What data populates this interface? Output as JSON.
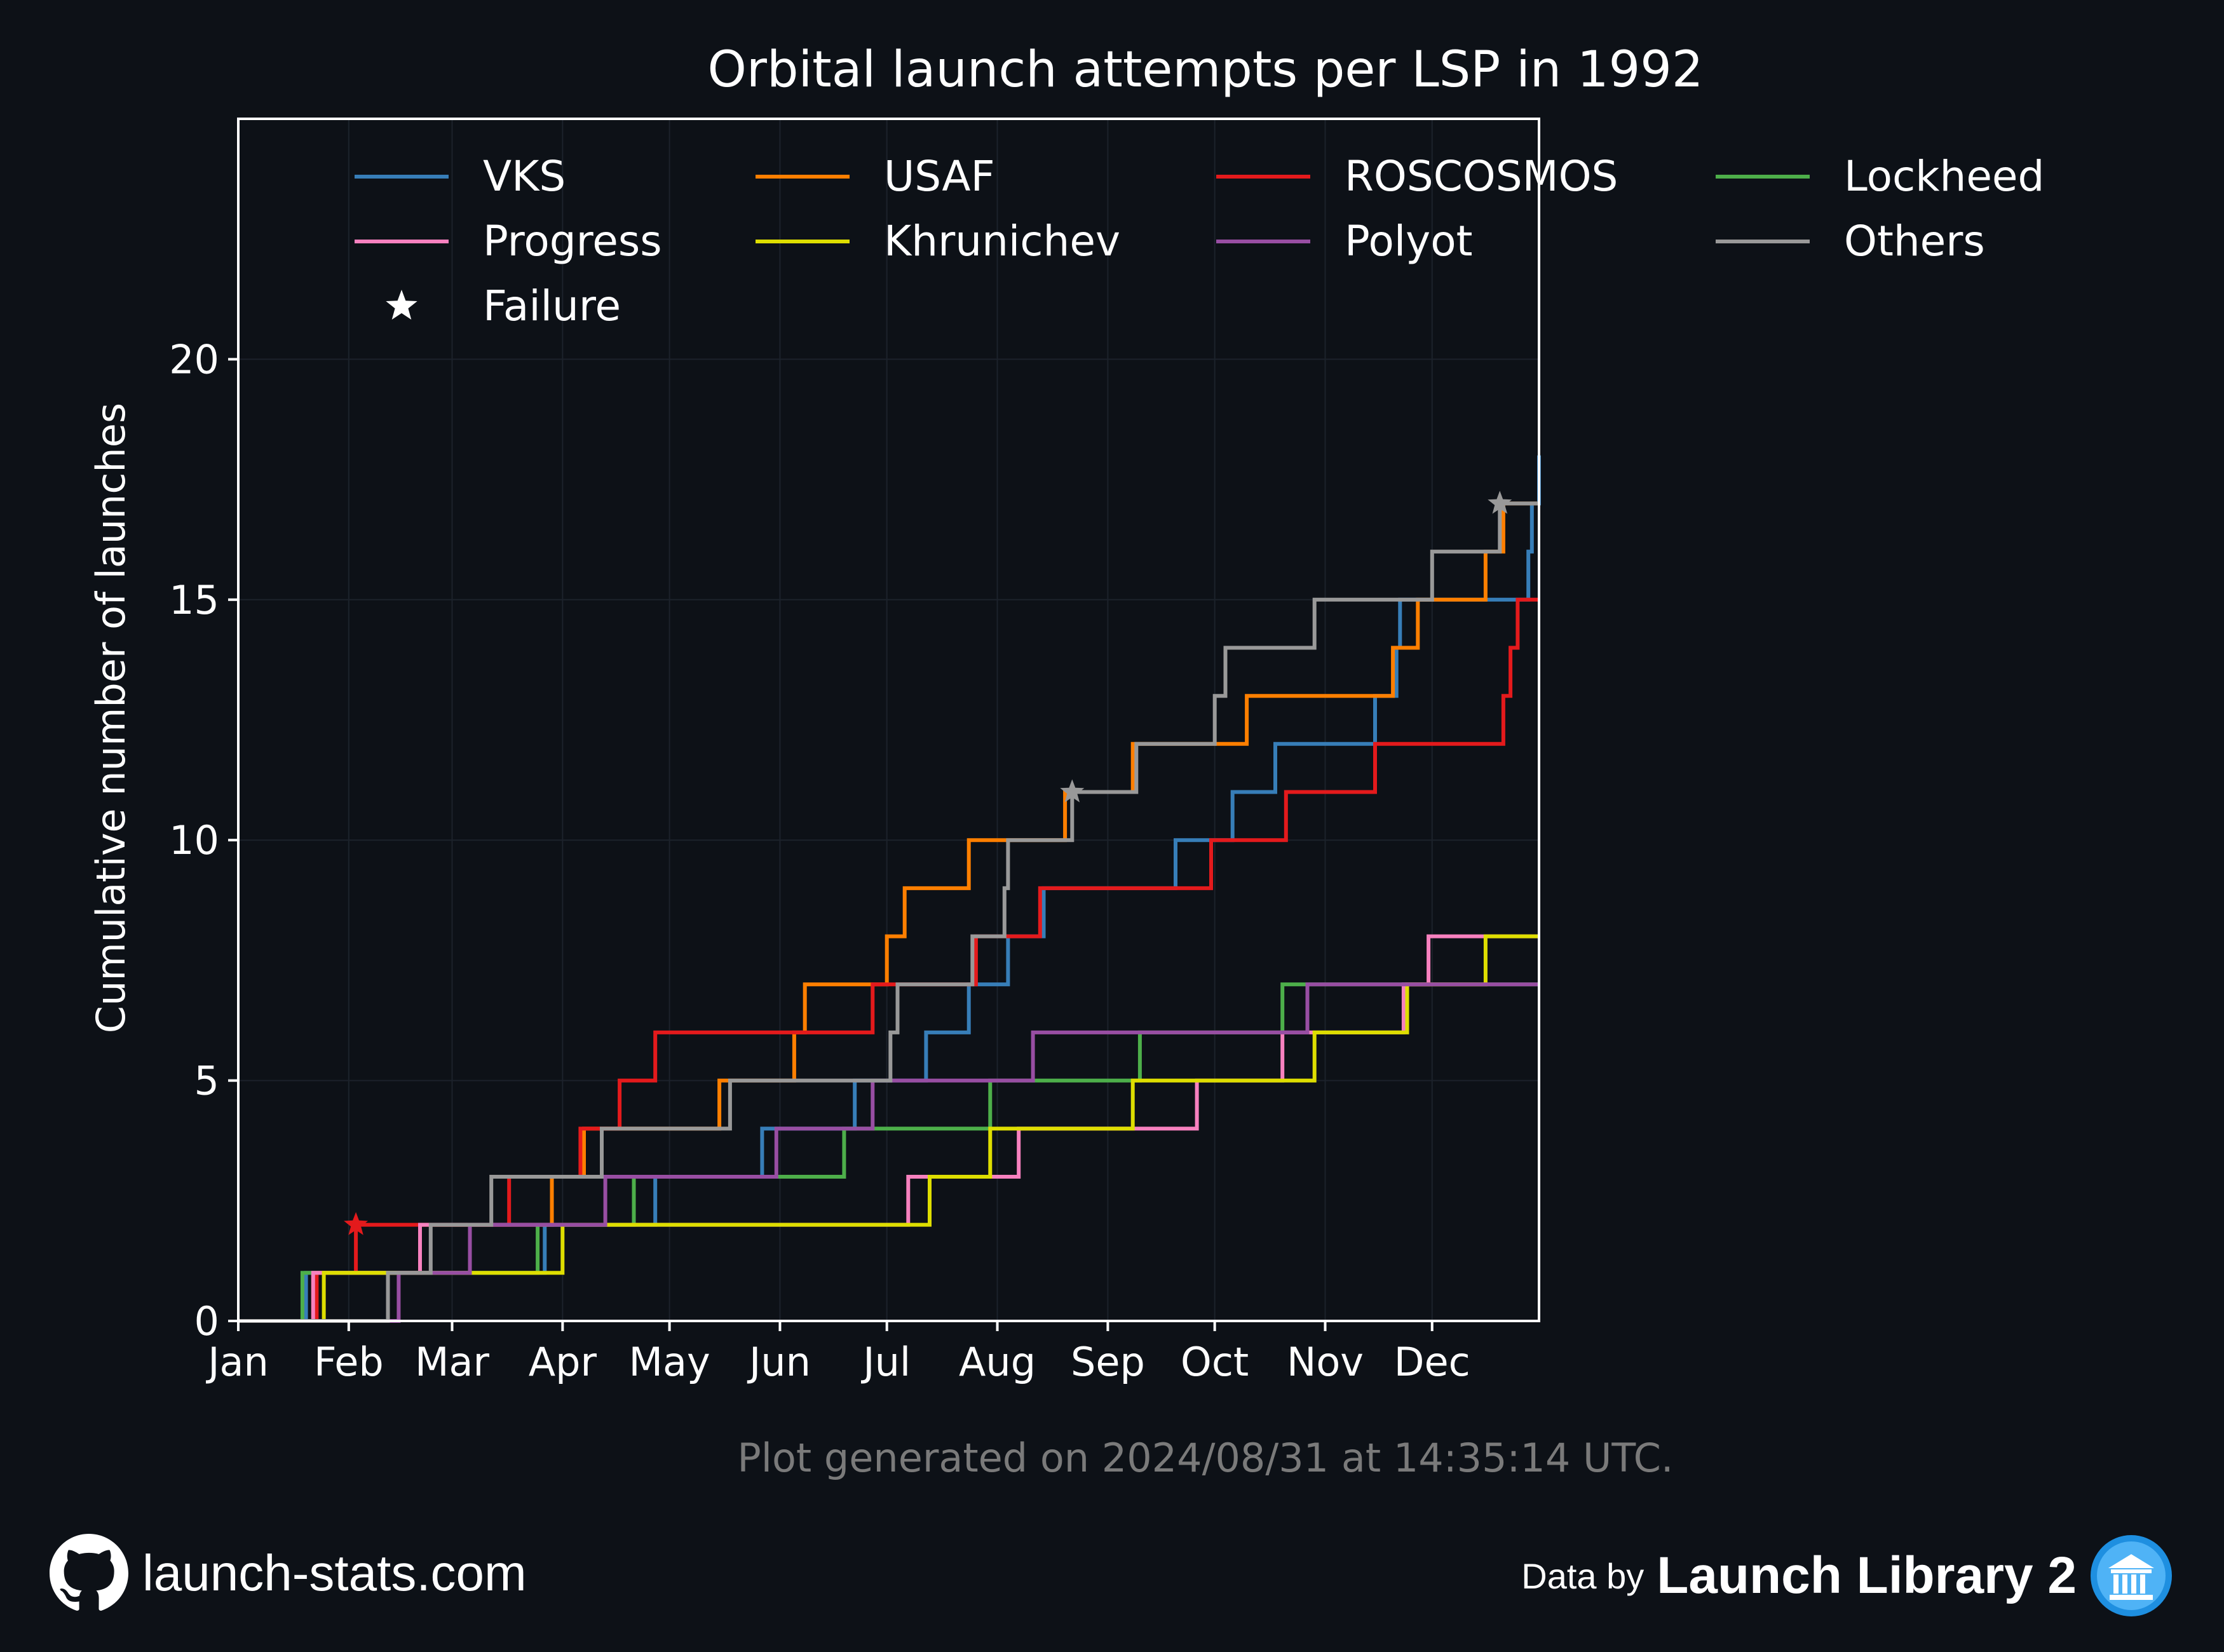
{
  "chart_data": {
    "type": "line",
    "step": "post",
    "title": "Orbital launch attempts per LSP in 1992",
    "xlabel": "",
    "ylabel": "Cumulative number of launches",
    "x_ticks": [
      {
        "label": "Jan",
        "date": "1992-01-01"
      },
      {
        "label": "Feb",
        "date": "1992-02-01"
      },
      {
        "label": "Mar",
        "date": "1992-03-01"
      },
      {
        "label": "Apr",
        "date": "1992-04-01"
      },
      {
        "label": "May",
        "date": "1992-05-01"
      },
      {
        "label": "Jun",
        "date": "1992-06-01"
      },
      {
        "label": "Jul",
        "date": "1992-07-01"
      },
      {
        "label": "Aug",
        "date": "1992-08-01"
      },
      {
        "label": "Sep",
        "date": "1992-09-01"
      },
      {
        "label": "Oct",
        "date": "1992-10-01"
      },
      {
        "label": "Nov",
        "date": "1992-11-01"
      },
      {
        "label": "Dec",
        "date": "1992-12-01"
      }
    ],
    "y_ticks": [
      "0",
      "5",
      "10",
      "15",
      "20"
    ],
    "xlim": [
      "1992-01-01",
      "1992-12-31"
    ],
    "ylim": [
      0,
      25
    ],
    "grid": true,
    "legend": {
      "position": "top",
      "columns": 4,
      "failure_label": "Failure"
    },
    "series": [
      {
        "name": "VKS",
        "color": "#377eb8",
        "launch_dates": [
          "1992-01-20",
          "1992-03-27",
          "1992-04-27",
          "1992-05-27",
          "1992-06-22",
          "1992-07-12",
          "1992-07-24",
          "1992-08-04",
          "1992-08-14",
          "1992-09-20",
          "1992-10-06",
          "1992-10-18",
          "1992-11-15",
          "1992-11-21",
          "1992-11-22",
          "1992-12-28",
          "1992-12-29",
          "1992-12-31"
        ],
        "failure_dates": []
      },
      {
        "name": "USAF",
        "color": "#ff7f00",
        "launch_dates": [
          "1992-01-22",
          "1992-02-21",
          "1992-03-29",
          "1992-04-07",
          "1992-05-15",
          "1992-06-05",
          "1992-06-08",
          "1992-07-01",
          "1992-07-06",
          "1992-07-24",
          "1992-08-20",
          "1992-09-08",
          "1992-10-10",
          "1992-11-20",
          "1992-11-27",
          "1992-12-16",
          "1992-12-21"
        ],
        "failure_dates": []
      },
      {
        "name": "ROSCOSMOS",
        "color": "#e41a1c",
        "launch_dates": [
          "1992-01-23",
          "1992-02-03",
          "1992-03-17",
          "1992-04-06",
          "1992-04-17",
          "1992-04-27",
          "1992-06-27",
          "1992-07-26",
          "1992-08-13",
          "1992-09-30",
          "1992-10-21",
          "1992-11-15",
          "1992-12-21",
          "1992-12-23",
          "1992-12-25"
        ],
        "failure_dates": [
          "1992-02-03"
        ]
      },
      {
        "name": "Lockheed",
        "color": "#4daf4a",
        "launch_dates": [
          "1992-01-19",
          "1992-03-25",
          "1992-04-21",
          "1992-06-19",
          "1992-07-30",
          "1992-09-10",
          "1992-10-20"
        ],
        "failure_dates": []
      },
      {
        "name": "Progress",
        "color": "#f781bf",
        "launch_dates": [
          "1992-01-22",
          "1992-02-21",
          "1992-07-07",
          "1992-08-07",
          "1992-09-26",
          "1992-10-20",
          "1992-11-23",
          "1992-11-30"
        ],
        "failure_dates": []
      },
      {
        "name": "Khrunichev",
        "color": "#dede00",
        "launch_dates": [
          "1992-01-25",
          "1992-04-01",
          "1992-07-13",
          "1992-07-30",
          "1992-09-08",
          "1992-10-29",
          "1992-11-24",
          "1992-12-16"
        ],
        "failure_dates": []
      },
      {
        "name": "Polyot",
        "color": "#984ea3",
        "launch_dates": [
          "1992-02-15",
          "1992-03-06",
          "1992-04-13",
          "1992-05-31",
          "1992-06-27",
          "1992-08-11",
          "1992-10-27"
        ],
        "failure_dates": []
      },
      {
        "name": "Others",
        "color": "#999999",
        "launch_dates": [
          "1992-02-12",
          "1992-02-24",
          "1992-03-12",
          "1992-04-12",
          "1992-05-18",
          "1992-07-02",
          "1992-07-04",
          "1992-07-25",
          "1992-08-03",
          "1992-08-04",
          "1992-08-22",
          "1992-09-09",
          "1992-10-01",
          "1992-10-04",
          "1992-10-29",
          "1992-12-01",
          "1992-12-20"
        ],
        "failure_dates": [
          "1992-08-22",
          "1992-12-20"
        ]
      }
    ],
    "footnote": "Plot generated on 2024/08/31 at 14:35:14 UTC."
  },
  "footer": {
    "site": "launch-stats.com",
    "site_icon": "github-icon",
    "data_by_label": "Data by",
    "data_source": "Launch Library 2",
    "source_icon": "launch-library-logo"
  },
  "colors": {
    "background": "#0d1117",
    "axes": "#ffffff",
    "grid": "#1c222b",
    "footnote": "#7a7a7a",
    "logo_blue": "#1e8fe0"
  }
}
